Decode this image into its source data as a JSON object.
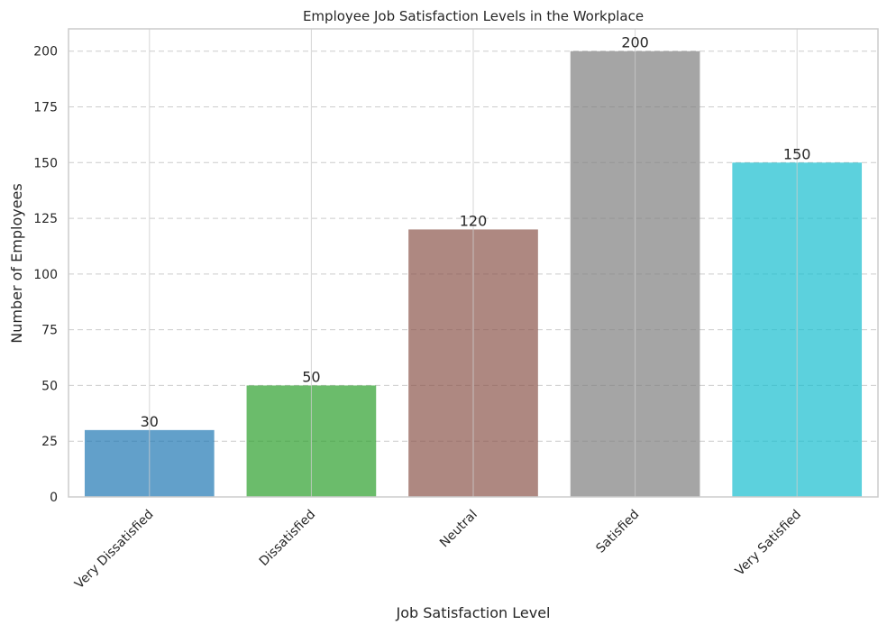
{
  "chart_data": {
    "type": "bar",
    "title": "Employee Job Satisfaction Levels in the Workplace",
    "xlabel": "Job Satisfaction Level",
    "ylabel": "Number of Employees",
    "categories": [
      "Very Dissatisfied",
      "Dissatisfied",
      "Neutral",
      "Satisfied",
      "Very Satisfied"
    ],
    "values": [
      30,
      50,
      120,
      200,
      150
    ],
    "data_labels": [
      "30",
      "50",
      "120",
      "200",
      "150"
    ],
    "colors": [
      "#1f77b4",
      "#2ca02c",
      "#8c564b",
      "#7f7f7f",
      "#17becf"
    ],
    "ylim": [
      0,
      210
    ],
    "yticks": [
      0,
      25,
      50,
      75,
      100,
      125,
      150,
      175,
      200
    ],
    "ytick_labels": [
      "0",
      "25",
      "50",
      "75",
      "100",
      "125",
      "150",
      "175",
      "200"
    ],
    "grid": true,
    "grid_style": "dashed horizontal, solid vertical",
    "bar_alpha": 0.7,
    "axis_color": "#cccccc",
    "grid_color": "#cccccc",
    "xtick_rotation": "45 degrees"
  }
}
